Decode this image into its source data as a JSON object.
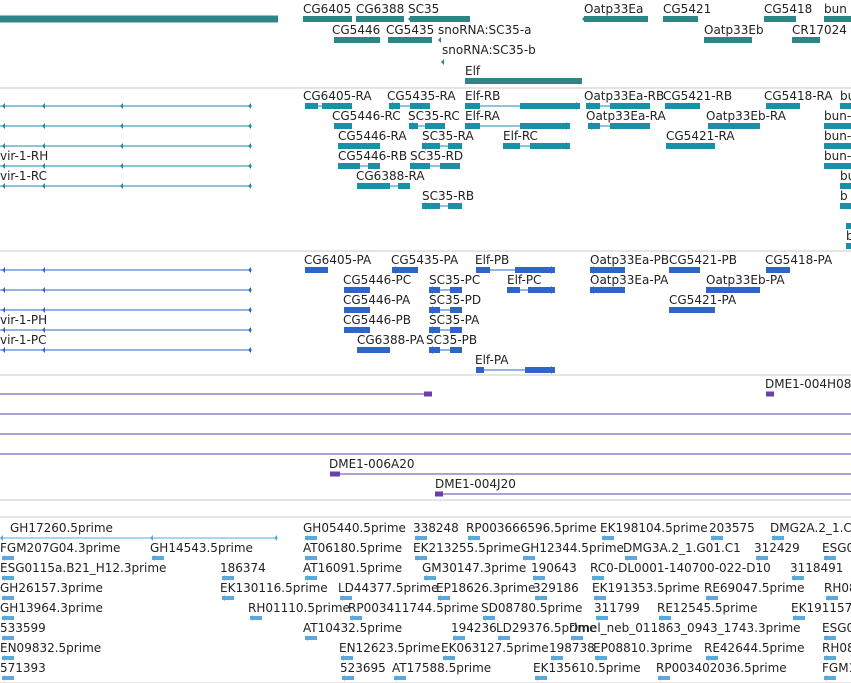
{
  "colors": {
    "gene": "#2f8585",
    "transcript": "#1a8fa8",
    "translation": "#2f64c8",
    "bac": "#6a3fa8",
    "est": "#5aa9dd",
    "divider": "#c9c9c9"
  },
  "tracks": {
    "genes": {
      "labels": [
        "CG6405",
        "CG6388",
        "SC35",
        "Oatp33Ea",
        "CG5421",
        "CG5418",
        "bun",
        "CG5446",
        "CG5435",
        "snoRNA:SC35-a",
        "Oatp33Eb",
        "CR17024",
        "snoRNA:SC35-b",
        "Elf"
      ]
    },
    "transcripts": {
      "labels": [
        "CG6405-RA",
        "CG5435-RA",
        "Elf-RB",
        "Oatp33Ea-RB",
        "CG5421-RB",
        "CG5418-RA",
        "bu",
        "CG5446-RC",
        "SC35-RC",
        "Elf-RA",
        "Oatp33Ea-RA",
        "Oatp33Eb-RA",
        "bun-",
        "vir-1-RH",
        "CG5446-RA",
        "SC35-RA",
        "Elf-RC",
        "CG5421-RA",
        "bun-",
        "vir-1-RC",
        "CG5446-RB",
        "SC35-RD",
        "bun-",
        "CG6388-RA",
        "bu",
        "SC35-RB",
        "b",
        "b"
      ]
    },
    "translations": {
      "labels": [
        "CG6405-PA",
        "CG5435-PA",
        "Elf-PB",
        "Oatp33Ea-PB",
        "CG5421-PB",
        "CG5418-PA",
        "CG5446-PC",
        "SC35-PC",
        "Elf-PC",
        "Oatp33Ea-PA",
        "Oatp33Eb-PA",
        "CG5446-PA",
        "SC35-PD",
        "CG5421-PA",
        "vir-1-PH",
        "CG5446-PB",
        "SC35-PA",
        "vir-1-PC",
        "CG6388-PA",
        "SC35-PB",
        "Elf-PA"
      ]
    },
    "bac": {
      "labels": [
        "DME1-004H08",
        "DME1-006A20",
        "DME1-004J20"
      ]
    },
    "ests": {
      "labels": [
        "GH17260.5prime",
        "GH05440.5prime",
        "338248",
        "RP003666596.5prime",
        "EK198104.5prime",
        "203575",
        "DMG2A.2_1.C",
        "FGM207G04.3prime",
        "GH14543.5prime",
        "AT06180.5prime",
        "EK213255.5prime",
        "GH12344.5prime",
        "DMG3A.2_1.G01.C1",
        "312429",
        "ESG0",
        "ESG0115a.B21_H12.3prime",
        "186374",
        "AT16091.5prime",
        "GM30147.3prime",
        "190643",
        "RC0-DL0001-140700-022-D10",
        "3118491",
        "GH26157.3prime",
        "EK130116.5prime",
        "LD44377.5prime",
        "EP18626.3prime",
        "329186",
        "EK191353.5prime",
        "RE69047.5prime",
        "RH08",
        "GH13964.3prime",
        "RH01110.5prime",
        "RP003411744.5prime",
        "SD08780.5prime",
        "311799",
        "RE12545.5prime",
        "EK191157",
        "533599",
        "AT10432.5prime",
        "194236",
        "LD29376.5prime",
        "Dmel_neb_011863_0943_1743.3prime",
        "ESG0",
        "EN09832.5prime",
        "EN12623.5prime",
        "EK063127.5prime",
        "198738",
        "EP08810.3prime",
        "RE42644.5prime",
        "RH08",
        "571393",
        "523695",
        "AT17588.5prime",
        "EK135610.5prime",
        "RP003402036.5prime",
        "FGM1"
      ]
    }
  }
}
